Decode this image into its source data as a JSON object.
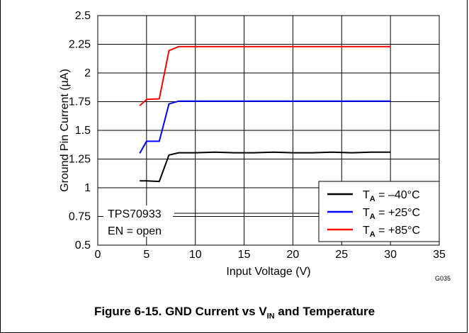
{
  "chart_data": {
    "type": "line",
    "xlabel": "Input Voltage (V)",
    "ylabel": "Ground Pin Current (µA)",
    "xlim": [
      0,
      35
    ],
    "ylim": [
      0.5,
      2.5
    ],
    "x_ticks": [
      "0",
      "5",
      "10",
      "15",
      "20",
      "25",
      "30",
      "35"
    ],
    "y_ticks": [
      "0.5",
      "0.75",
      "1",
      "1.25",
      "1.5",
      "1.75",
      "2",
      "2.25",
      "2.5"
    ],
    "grid": true,
    "legend_position": "bottom-right",
    "annotation_lines": [
      "TPS70933",
      "EN = open"
    ],
    "code": "G035",
    "series": [
      {
        "legend_main": "T",
        "legend_sub": "A",
        "legend_value": " = –40°C",
        "color": "#000000",
        "x": [
          4.3,
          5.0,
          6.3,
          7.3,
          8.3,
          10,
          12,
          14,
          16,
          18,
          20,
          22,
          24,
          26,
          28,
          30
        ],
        "y": [
          1.06,
          1.06,
          1.055,
          1.285,
          1.305,
          1.305,
          1.31,
          1.305,
          1.305,
          1.31,
          1.305,
          1.305,
          1.31,
          1.305,
          1.31,
          1.31
        ]
      },
      {
        "legend_main": "T",
        "legend_sub": "A",
        "legend_value": " = +25°C",
        "color": "#0000ff",
        "x": [
          4.3,
          5.0,
          6.3,
          7.3,
          8.3,
          10,
          12,
          14,
          16,
          18,
          20,
          22,
          24,
          26,
          28,
          30
        ],
        "y": [
          1.3,
          1.405,
          1.405,
          1.73,
          1.755,
          1.755,
          1.755,
          1.755,
          1.755,
          1.755,
          1.755,
          1.755,
          1.755,
          1.755,
          1.755,
          1.755
        ]
      },
      {
        "legend_main": "T",
        "legend_sub": "A",
        "legend_value": " = +85°C",
        "color": "#ff0000",
        "x": [
          4.3,
          5.0,
          6.3,
          7.3,
          8.3,
          10,
          12,
          14,
          16,
          18,
          20,
          22,
          24,
          26,
          28,
          30
        ],
        "y": [
          1.715,
          1.77,
          1.775,
          2.195,
          2.23,
          2.23,
          2.23,
          2.23,
          2.23,
          2.23,
          2.23,
          2.23,
          2.23,
          2.23,
          2.23,
          2.23
        ]
      }
    ]
  },
  "caption": {
    "prefix": "Figure 6-15. GND Current vs V",
    "sub": "IN",
    "suffix": " and Temperature"
  }
}
